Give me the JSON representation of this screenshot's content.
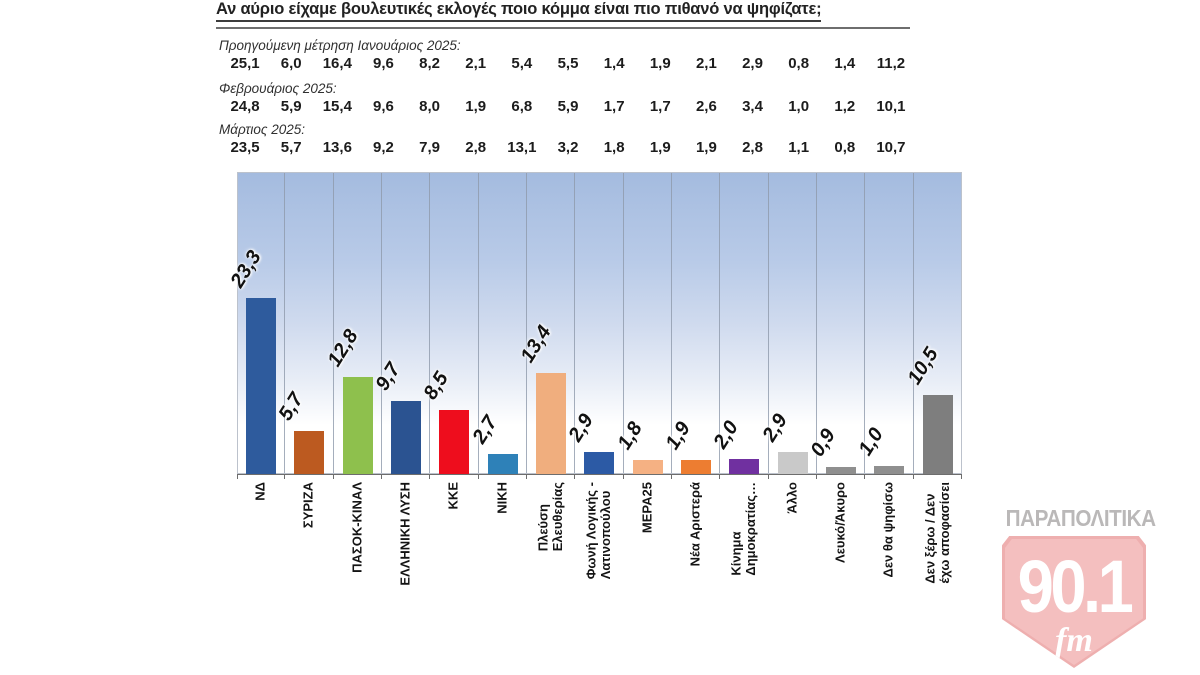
{
  "title": "Αν αύριο είχαμε βουλευτικές εκλογές ποιο κόμμα είναι πιο πιθανό να ψηφίζατε;",
  "measurements": [
    {
      "label": "Προηγούμενη μέτρηση Ιανουάριος 2025:",
      "values": [
        "25,1",
        "6,0",
        "16,4",
        "9,6",
        "8,2",
        "2,1",
        "5,4",
        "5,5",
        "1,4",
        "1,9",
        "2,1",
        "2,9",
        "0,8",
        "1,4",
        "11,2"
      ]
    },
    {
      "label": "Φεβρουάριος 2025:",
      "values": [
        "24,8",
        "5,9",
        "15,4",
        "9,6",
        "8,0",
        "1,9",
        "6,8",
        "5,9",
        "1,7",
        "1,7",
        "2,6",
        "3,4",
        "1,0",
        "1,2",
        "10,1"
      ]
    },
    {
      "label": "Μάρτιος 2025:",
      "values": [
        "23,5",
        "5,7",
        "13,6",
        "9,2",
        "7,9",
        "2,8",
        "13,1",
        "3,2",
        "1,8",
        "1,9",
        "1,9",
        "2,8",
        "1,1",
        "0,8",
        "10,7"
      ]
    }
  ],
  "chart_data": {
    "type": "bar",
    "title": "Αν αύριο είχαμε βουλευτικές εκλογές ποιο κόμμα είναι πιο πιθανό να ψηφίζατε;",
    "categories": [
      "ΝΔ",
      "ΣΥΡΙΖΑ",
      "ΠΑΣΟΚ-ΚΙΝΑΛ",
      "ΕΛΛΗΝΙΚΗ ΛΥΣΗ",
      "ΚΚΕ",
      "ΝΙΚΗ",
      "Πλεύση Ελευθερίας",
      "Φωνή Λογικής - Λατινοπούλου",
      "ΜΕΡΑ25",
      "Νέα Αριστερά",
      "Κίνημα Δημοκρατίας…",
      "Άλλο",
      "Λευκό/Άκυρο",
      "Δεν θα ψηφίσω",
      "Δεν ξέρω / Δεν έχω αποφασίσει"
    ],
    "values": [
      23.3,
      5.7,
      12.8,
      9.7,
      8.5,
      2.7,
      13.4,
      2.9,
      1.8,
      1.9,
      2.0,
      2.9,
      0.9,
      1.0,
      10.5
    ],
    "value_labels": [
      "23,3",
      "5,7",
      "12,8",
      "9,7",
      "8,5",
      "2,7",
      "13,4",
      "2,9",
      "1,8",
      "1,9",
      "2,0",
      "2,9",
      "0,9",
      "1,0",
      "10,5"
    ],
    "category_lines": [
      [
        "ΝΔ"
      ],
      [
        "ΣΥΡΙΖΑ"
      ],
      [
        "ΠΑΣΟΚ-ΚΙΝΑΛ"
      ],
      [
        "ΕΛΛΗΝΙΚΗ ΛΥΣΗ"
      ],
      [
        "ΚΚΕ"
      ],
      [
        "ΝΙΚΗ"
      ],
      [
        "Πλεύση",
        "Ελευθερίας"
      ],
      [
        "Φωνή Λογικής -",
        "Λατινοπούλου"
      ],
      [
        "ΜΕΡΑ25"
      ],
      [
        "Νέα Αριστερά"
      ],
      [
        "Κίνημα",
        "Δημοκρατίας…"
      ],
      [
        "Άλλο"
      ],
      [
        "Λευκό/Άκυρο"
      ],
      [
        "Δεν θα ψηφίσω"
      ],
      [
        "Δεν ξέρω / Δεν",
        "έχω αποφασίσει"
      ]
    ],
    "bar_colors": [
      "#2e5b9d",
      "#bc5a20",
      "#8ec04d",
      "#2b5391",
      "#ee0d1d",
      "#2e81b8",
      "#f0ae7e",
      "#2c5aa5",
      "#f5b183",
      "#ed7d31",
      "#7030a0",
      "#c9c9c9",
      "#8f8f8f",
      "#8f8f8f",
      "#7e7e7e"
    ],
    "xlabel": "",
    "ylabel": "",
    "ylim": [
      0,
      40
    ],
    "grid": "vertical column separators only",
    "legend": "none",
    "plot_background": [
      "#a4bbdf",
      "#ffffff"
    ],
    "history_series": [
      {
        "name": "Προηγούμενη μέτρηση Ιανουάριος 2025",
        "values": [
          25.1,
          6.0,
          16.4,
          9.6,
          8.2,
          2.1,
          5.4,
          5.5,
          1.4,
          1.9,
          2.1,
          2.9,
          0.8,
          1.4,
          11.2
        ]
      },
      {
        "name": "Φεβρουάριος 2025",
        "values": [
          24.8,
          5.9,
          15.4,
          9.6,
          8.0,
          1.9,
          6.8,
          5.9,
          1.7,
          1.7,
          2.6,
          3.4,
          1.0,
          1.2,
          10.1
        ]
      },
      {
        "name": "Μάρτιος 2025",
        "values": [
          23.5,
          5.7,
          13.6,
          9.2,
          7.9,
          2.8,
          13.1,
          3.2,
          1.8,
          1.9,
          1.9,
          2.8,
          1.1,
          0.8,
          10.7
        ]
      }
    ]
  },
  "logo": {
    "brand": "ΠΑΡΑΠΟΛΙΤΙΚΑ",
    "frequency": "90.1",
    "band": "fm",
    "brand_color": "#b5b2b2",
    "badge_color": "#f4baba"
  }
}
